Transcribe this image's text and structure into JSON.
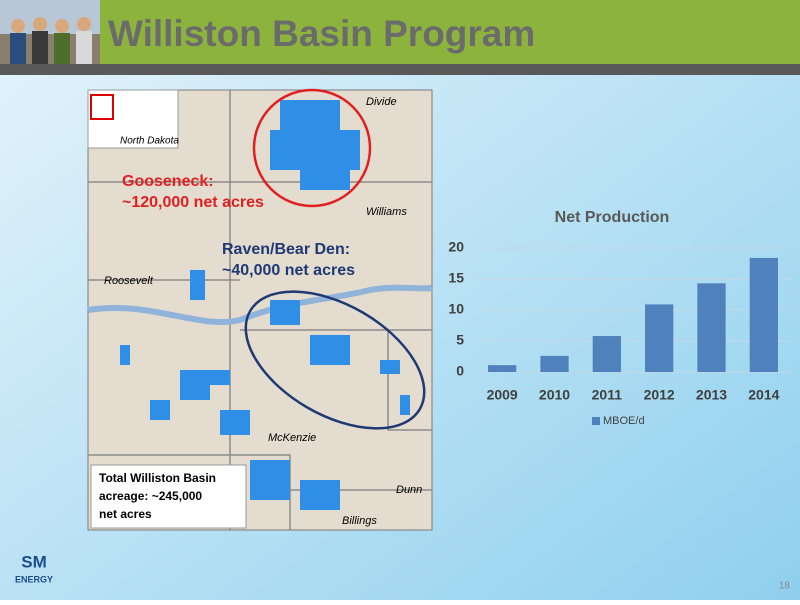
{
  "header": {
    "title": "Williston Basin Program"
  },
  "map": {
    "state_label": "North Dakota",
    "county_labels": [
      "Divide",
      "Williams",
      "Roosevelt",
      "McKenzie",
      "Dunn",
      "Billings"
    ],
    "gooseneck": [
      "Gooseneck:",
      "~120,000 net acres"
    ],
    "raven": [
      "Raven/Bear Den:",
      "~40,000 net acres"
    ],
    "total": [
      "Total Williston Basin",
      "acreage: ~245,000",
      "net acres"
    ]
  },
  "logo": [
    "SM",
    "ENERGY"
  ],
  "page_number": "18",
  "chart_data": {
    "type": "bar",
    "title": "Net Production",
    "categories": [
      "2009",
      "2010",
      "2011",
      "2012",
      "2013",
      "2014"
    ],
    "series": [
      {
        "name": "MBOE/d",
        "color": "#4f81bd",
        "values": [
          1.1,
          2.6,
          5.8,
          10.9,
          14.3,
          18.4
        ]
      }
    ],
    "ylim": [
      0,
      20
    ],
    "yticks": [
      0,
      5,
      10,
      15,
      20
    ],
    "grid": true,
    "legend": "bottom"
  }
}
